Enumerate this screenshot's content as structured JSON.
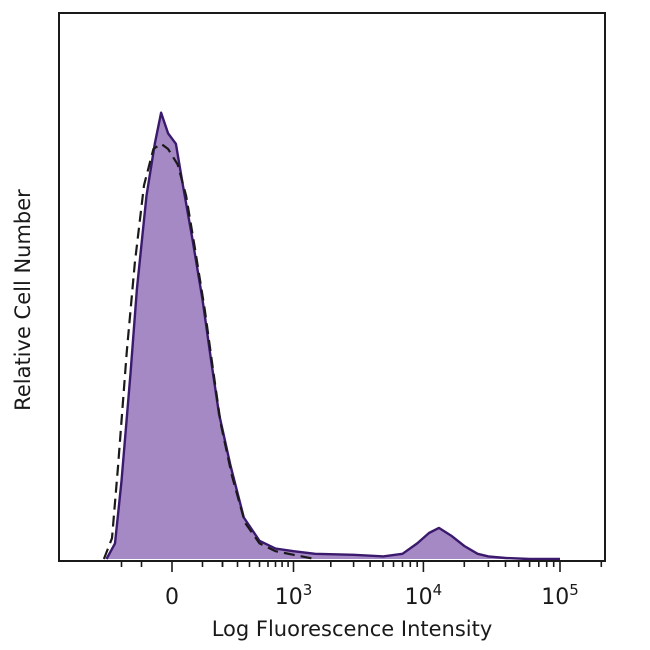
{
  "chart_data": {
    "type": "area",
    "xlabel": "Log Fluorescence Intensity",
    "ylabel": "Relative Cell Number",
    "x_scale": "biexponential",
    "xlim": [
      -300,
      200000
    ],
    "ylim": [
      0,
      100
    ],
    "grid": false,
    "legend": "none",
    "x_ticks": [
      {
        "value": 0,
        "label": "0"
      },
      {
        "value": 1000,
        "label": "10",
        "exp": "3"
      },
      {
        "value": 10000,
        "label": "10",
        "exp": "4"
      },
      {
        "value": 100000,
        "label": "10",
        "exp": "5"
      }
    ],
    "series": [
      {
        "style": "filled",
        "color": "#a589c4",
        "edge_color": "#3b1a6e",
        "x": [
          -300,
          -240,
          -200,
          -150,
          -120,
          -80,
          -50,
          -30,
          -10,
          10,
          30,
          60,
          100,
          140,
          180,
          250,
          350,
          500,
          700,
          1000,
          1500,
          3000,
          5000,
          7000,
          9000,
          11000,
          13000,
          16000,
          20000,
          25000,
          30000,
          40000,
          60000,
          100000
        ],
        "values": [
          0,
          3,
          15,
          36,
          52,
          70,
          80,
          86,
          82,
          80,
          72,
          62,
          50,
          38,
          28,
          18,
          8,
          3.5,
          2,
          1.5,
          1,
          0.8,
          0.5,
          1,
          3,
          5,
          6,
          4.5,
          2.5,
          1,
          0.5,
          0.2,
          0,
          0
        ]
      },
      {
        "style": "dashed",
        "color": "#1a1a1a",
        "x": [
          -320,
          -260,
          -220,
          -170,
          -130,
          -90,
          -55,
          -30,
          -10,
          15,
          40,
          70,
          110,
          150,
          190,
          260,
          360,
          500,
          700,
          1000,
          1500
        ],
        "values": [
          0,
          4,
          18,
          40,
          57,
          72,
          79,
          80,
          79,
          76,
          70,
          60,
          48,
          36,
          26,
          16,
          7,
          3,
          1.5,
          0.8,
          0
        ]
      }
    ]
  }
}
